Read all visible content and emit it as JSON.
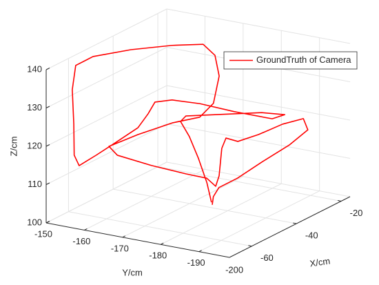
{
  "chart_data": {
    "type": "line3d",
    "xlabel": "X/cm",
    "ylabel": "Y/cm",
    "zlabel": "Z/cm",
    "xlim": [
      -70,
      -16
    ],
    "ylim": [
      -150,
      -198
    ],
    "zlim": [
      100,
      140
    ],
    "xticks": [
      -60,
      -40,
      -20
    ],
    "yticks": [
      -150,
      -160,
      -170,
      -180,
      -190,
      -200
    ],
    "zticks": [
      100,
      110,
      120,
      130,
      140
    ],
    "grid": true,
    "legend": "northeast",
    "series": [
      {
        "name": "GroundTruth of Camera",
        "color": "#ff0000",
        "x": [
          -43,
          -43,
          -43,
          -43,
          -43,
          -43,
          -43,
          -43,
          -43,
          -43,
          -43,
          -43,
          -43,
          -43,
          -43,
          -61.9,
          -61.9,
          -61.9,
          -61.9,
          -61.9,
          -61.9,
          -61.9,
          -61.9,
          -53.8,
          -43,
          -32.2,
          -32.2,
          -32.2,
          -32.2,
          -32.2,
          -32.2,
          -48.4,
          -61.9,
          -61.9,
          -61.9,
          -61.9,
          -61.9,
          -61.9,
          -43,
          -43,
          -43,
          -43,
          -43,
          -43,
          -43,
          -37.6,
          -34.9,
          -37.6,
          -43,
          -48.4,
          -48.4,
          -43,
          -43
        ],
        "y": [
          -177.5,
          -176.3,
          -174.1,
          -171.7,
          -169.4,
          -170.8,
          -179.9,
          -190.7,
          -196.7,
          -193.4,
          -183.5,
          -174.5,
          -167.2,
          -162.7,
          -160.9,
          -169.3,
          -163.9,
          -158.4,
          -153.9,
          -152.6,
          -152.5,
          -152.1,
          -153.0,
          -152.8,
          -156.4,
          -160.9,
          -169.0,
          -172.1,
          -173.2,
          -171.7,
          -168.1,
          -170.4,
          -169.3,
          -161.7,
          -163.9,
          -172.8,
          -181.9,
          -187.3,
          -178.6,
          -179.5,
          -180.2,
          -181.3,
          -184.4,
          -189.8,
          -196.1,
          -198.4,
          -198.0,
          -194.7,
          -190.7,
          -187.5,
          -182.6,
          -178.0,
          -177.7
        ],
        "z": [
          102.6,
          107.5,
          113.4,
          118.7,
          122.2,
          123.9,
          126.0,
          128.5,
          129.1,
          127.4,
          127.4,
          127.8,
          127.4,
          126.0,
          122.6,
          126.1,
          121.5,
          116.9,
          113.3,
          115.8,
          123.9,
          132.8,
          139.3,
          139.2,
          138.5,
          137.3,
          139.1,
          136.8,
          131.6,
          124.2,
          119.9,
          123.6,
          124.3,
          119.8,
          117.9,
          116.9,
          116.4,
          116.3,
          107.0,
          109.9,
          117.2,
          120.1,
          119.8,
          122.6,
          126.5,
          126.8,
          123.0,
          119.2,
          115.6,
          112.4,
          109.0,
          104.2,
          102.0
        ]
      }
    ]
  }
}
